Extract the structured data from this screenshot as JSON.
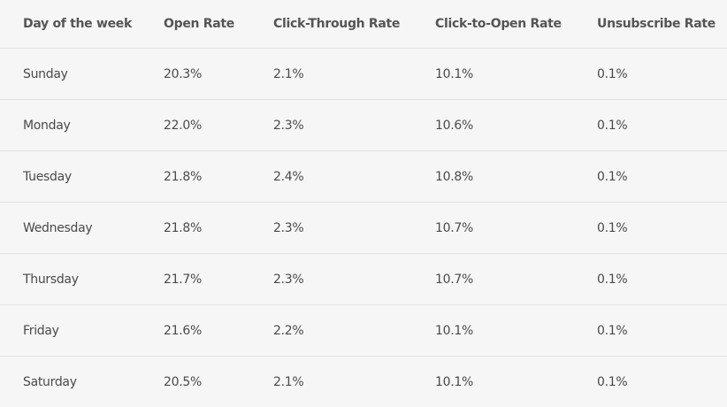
{
  "table": {
    "header": [
      "Day of the week",
      "Open Rate",
      "Click-Through Rate",
      "Click-to-Open Rate",
      "Unsubscribe Rate"
    ],
    "rows": [
      [
        "Sunday",
        "20.3%",
        "2.1%",
        "10.1%",
        "0.1%"
      ],
      [
        "Monday",
        "22.0%",
        "2.3%",
        "10.6%",
        "0.1%"
      ],
      [
        "Tuesday",
        "21.8%",
        "2.4%",
        "10.8%",
        "0.1%"
      ],
      [
        "Wednesday",
        "21.8%",
        "2.3%",
        "10.7%",
        "0.1%"
      ],
      [
        "Thursday",
        "21.7%",
        "2.3%",
        "10.7%",
        "0.1%"
      ],
      [
        "Friday",
        "21.6%",
        "2.2%",
        "10.1%",
        "0.1%"
      ],
      [
        "Saturday",
        "20.5%",
        "2.1%",
        "10.1%",
        "0.1%"
      ]
    ]
  }
}
